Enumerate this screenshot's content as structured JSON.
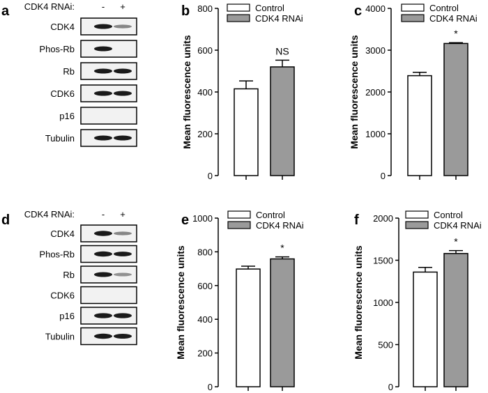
{
  "figure": {
    "panels": {
      "a": {
        "label": "a",
        "header": "CDK4 RNAi:",
        "lane_minus": "-",
        "lane_plus": "+",
        "rows": [
          {
            "name": "CDK4",
            "bands": [
              0.85,
              0.25
            ]
          },
          {
            "name": "Phos-Rb",
            "bands": [
              0.85,
              0.0
            ]
          },
          {
            "name": "Rb",
            "bands": [
              0.85,
              0.85
            ]
          },
          {
            "name": "CDK6",
            "bands": [
              0.85,
              0.85
            ]
          },
          {
            "name": "p16",
            "bands": [
              0.0,
              0.0
            ]
          },
          {
            "name": "Tubulin",
            "bands": [
              0.85,
              0.85
            ]
          }
        ]
      },
      "d": {
        "label": "d",
        "header": "CDK4 RNAi:",
        "lane_minus": "-",
        "lane_plus": "+",
        "rows": [
          {
            "name": "CDK4",
            "bands": [
              0.95,
              0.25
            ]
          },
          {
            "name": "Phos-Rb",
            "bands": [
              0.95,
              0.75
            ]
          },
          {
            "name": "Rb",
            "bands": [
              0.85,
              0.2
            ]
          },
          {
            "name": "CDK6",
            "bands": [
              0.0,
              0.0
            ]
          },
          {
            "name": "p16",
            "bands": [
              0.9,
              0.9
            ]
          },
          {
            "name": "Tubulin",
            "bands": [
              0.95,
              0.85
            ]
          }
        ]
      }
    }
  },
  "chart_data": [
    {
      "panel": "b",
      "type": "bar",
      "title": "",
      "xlabel": "",
      "ylabel": "Mean fluorescence units",
      "ylim": [
        0,
        800
      ],
      "ticks": [
        0,
        200,
        400,
        600,
        800
      ],
      "legend": [
        "Control",
        "CDK4 RNAi"
      ],
      "categories": [
        "Control",
        "CDK4 RNAi"
      ],
      "values": [
        415,
        520
      ],
      "errors": [
        38,
        32
      ],
      "annotation": "NS"
    },
    {
      "panel": "c",
      "type": "bar",
      "title": "",
      "xlabel": "",
      "ylabel": "Mean fluorescence units",
      "ylim": [
        0,
        4000
      ],
      "ticks": [
        0,
        1000,
        2000,
        3000,
        4000
      ],
      "legend": [
        "Control",
        "CDK4 RNAi"
      ],
      "categories": [
        "Control",
        "CDK4 RNAi"
      ],
      "values": [
        2390,
        3160
      ],
      "errors": [
        80,
        20
      ],
      "annotation": "*"
    },
    {
      "panel": "e",
      "type": "bar",
      "title": "",
      "xlabel": "",
      "ylabel": "Mean fluorescence units",
      "ylim": [
        0,
        1000
      ],
      "ticks": [
        0,
        200,
        400,
        600,
        800,
        1000
      ],
      "legend": [
        "Control",
        "CDK4 RNAi"
      ],
      "categories": [
        "Control",
        "CDK4 RNAi"
      ],
      "values": [
        698,
        758
      ],
      "errors": [
        17,
        12
      ],
      "annotation": "*"
    },
    {
      "panel": "f",
      "type": "bar",
      "title": "",
      "xlabel": "",
      "ylabel": "Mean fluorescence units",
      "ylim": [
        0,
        2000
      ],
      "ticks": [
        0,
        500,
        1000,
        1500,
        2000
      ],
      "legend": [
        "Control",
        "CDK4 RNAi"
      ],
      "categories": [
        "Control",
        "CDK4 RNAi"
      ],
      "values": [
        1360,
        1580
      ],
      "errors": [
        55,
        35
      ],
      "annotation": "*"
    }
  ],
  "colors": {
    "control": "#ffffff",
    "rnai": "#9a9a9a",
    "band": "#1a1a1a",
    "box_bg": "#f2f2f2"
  }
}
